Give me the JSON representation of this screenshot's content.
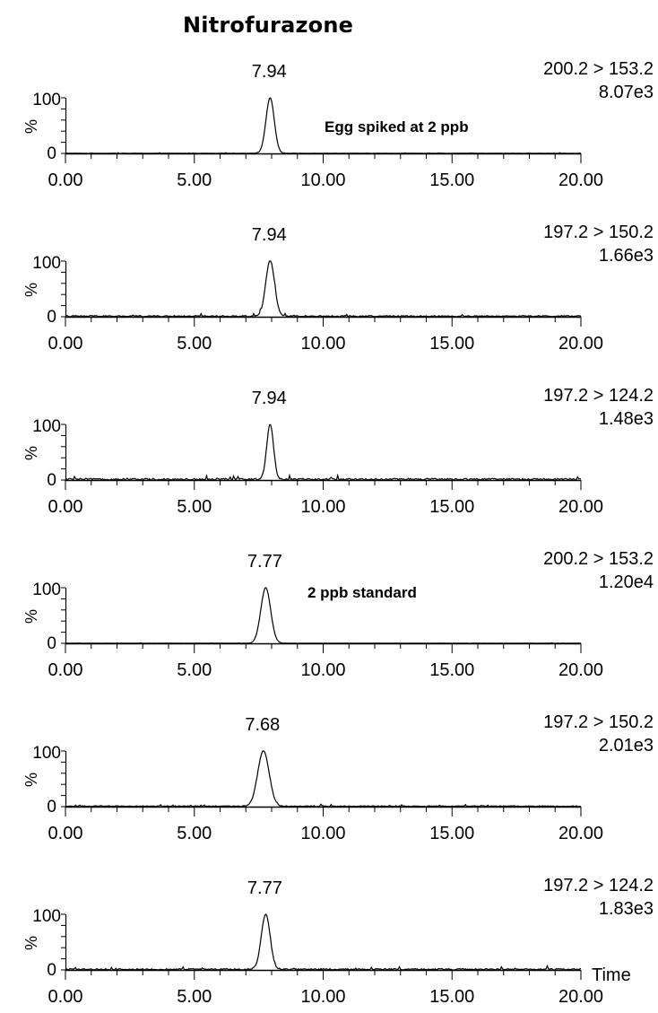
{
  "title": "Nitrofurazone",
  "chart_data": [
    {
      "type": "line",
      "transition": "200.2 > 153.2",
      "intensity": "8.07e3",
      "peak_label": "7.94",
      "annotation": "Egg spiked at 2 ppb",
      "xlim": [
        0,
        20
      ],
      "ylim": [
        0,
        100
      ],
      "xticks": [
        "0.00",
        "5.00",
        "10.00",
        "15.00",
        "20.00"
      ],
      "y_tick_labels": [
        "0",
        "100"
      ],
      "ylabel": "%",
      "xlabel": "",
      "series": [
        {
          "peak_rt": 7.94,
          "peak_height": 100,
          "peak_width": 0.16,
          "noise": 0.6
        }
      ]
    },
    {
      "type": "line",
      "transition": "197.2 > 150.2",
      "intensity": "1.66e3",
      "peak_label": "7.94",
      "annotation": "",
      "xlim": [
        0,
        20
      ],
      "ylim": [
        0,
        100
      ],
      "xticks": [
        "0.00",
        "5.00",
        "10.00",
        "15.00",
        "20.00"
      ],
      "y_tick_labels": [
        "0",
        "100"
      ],
      "ylabel": "%",
      "xlabel": "",
      "series": [
        {
          "peak_rt": 7.94,
          "peak_height": 100,
          "peak_width": 0.17,
          "noise": 2.2
        }
      ]
    },
    {
      "type": "line",
      "transition": "197.2 > 124.2",
      "intensity": "1.48e3",
      "peak_label": "7.94",
      "annotation": "",
      "xlim": [
        0,
        20
      ],
      "ylim": [
        0,
        100
      ],
      "xticks": [
        "0.00",
        "5.00",
        "10.00",
        "15.00",
        "20.00"
      ],
      "y_tick_labels": [
        "0",
        "100"
      ],
      "ylabel": "%",
      "xlabel": "",
      "series": [
        {
          "peak_rt": 7.94,
          "peak_height": 100,
          "peak_width": 0.13,
          "noise": 3.0
        }
      ]
    },
    {
      "type": "line",
      "transition": "200.2 > 153.2",
      "intensity": "1.20e4",
      "peak_label": "7.77",
      "annotation": "2 ppb standard",
      "xlim": [
        0,
        20
      ],
      "ylim": [
        0,
        100
      ],
      "xticks": [
        "0.00",
        "5.00",
        "10.00",
        "15.00",
        "20.00"
      ],
      "y_tick_labels": [
        "0",
        "100"
      ],
      "ylabel": "%",
      "xlabel": "",
      "series": [
        {
          "peak_rt": 7.77,
          "peak_height": 100,
          "peak_width": 0.19,
          "noise": 0.4
        }
      ]
    },
    {
      "type": "line",
      "transition": "197.2 > 150.2",
      "intensity": "2.01e3",
      "peak_label": "7.68",
      "annotation": "",
      "xlim": [
        0,
        20
      ],
      "ylim": [
        0,
        100
      ],
      "xticks": [
        "0.00",
        "5.00",
        "10.00",
        "15.00",
        "20.00"
      ],
      "y_tick_labels": [
        "0",
        "100"
      ],
      "ylabel": "%",
      "xlabel": "",
      "series": [
        {
          "peak_rt": 7.68,
          "peak_height": 100,
          "peak_width": 0.22,
          "noise": 1.6
        }
      ]
    },
    {
      "type": "line",
      "transition": "197.2 > 124.2",
      "intensity": "1.83e3",
      "peak_label": "7.77",
      "annotation": "",
      "xlim": [
        0,
        20
      ],
      "ylim": [
        0,
        100
      ],
      "xticks": [
        "0.00",
        "5.00",
        "10.00",
        "15.00",
        "20.00"
      ],
      "y_tick_labels": [
        "0",
        "100"
      ],
      "ylabel": "%",
      "xlabel": "Time",
      "series": [
        {
          "peak_rt": 7.77,
          "peak_height": 100,
          "peak_width": 0.17,
          "noise": 2.4
        }
      ]
    }
  ]
}
